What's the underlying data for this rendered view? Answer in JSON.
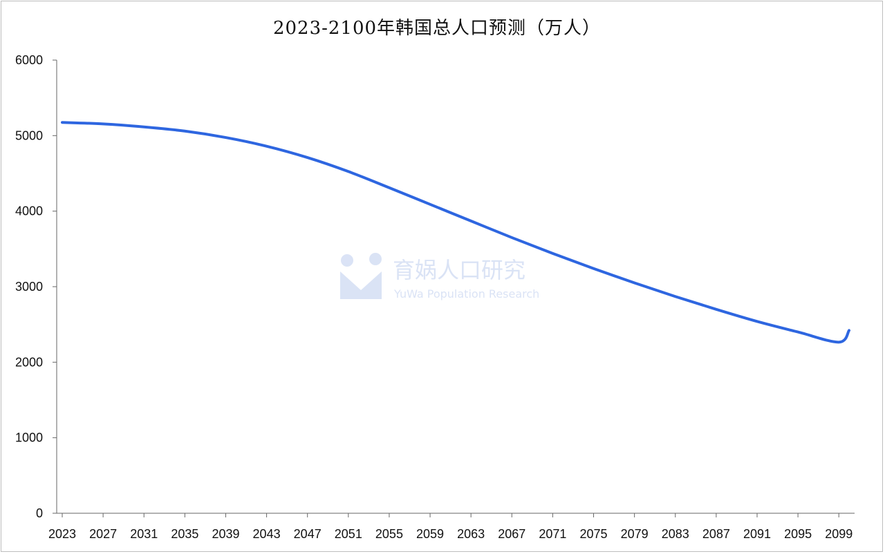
{
  "colors": {
    "line": "#2e66e0",
    "axis": "#666666",
    "watermark": "#d7e0f5"
  },
  "watermark": {
    "title": "育娲人口研究",
    "subtitle": "YuWa Population Research",
    "logo": "yuwa-logo-icon"
  },
  "chart_data": {
    "type": "line",
    "title": "2023-2100年韩国总人口预测（万人）",
    "xlabel": "",
    "ylabel": "",
    "ylim": [
      0,
      6000
    ],
    "yticks": [
      0,
      1000,
      2000,
      3000,
      4000,
      5000,
      6000
    ],
    "xlim": [
      2023,
      2100
    ],
    "xticks": [
      2023,
      2027,
      2031,
      2035,
      2039,
      2043,
      2047,
      2051,
      2055,
      2059,
      2063,
      2067,
      2071,
      2075,
      2079,
      2083,
      2087,
      2091,
      2095,
      2099
    ],
    "grid": false,
    "legend": "none",
    "series": [
      {
        "x": [
          2023,
          2027,
          2031,
          2035,
          2039,
          2043,
          2047,
          2051,
          2055,
          2059,
          2063,
          2067,
          2071,
          2075,
          2079,
          2083,
          2087,
          2091,
          2095,
          2099,
          2100
        ],
        "values": [
          5175,
          5155,
          5115,
          5060,
          4975,
          4860,
          4710,
          4525,
          4310,
          4090,
          3870,
          3650,
          3440,
          3240,
          3050,
          2870,
          2700,
          2540,
          2400,
          2265,
          2420
        ]
      }
    ]
  }
}
